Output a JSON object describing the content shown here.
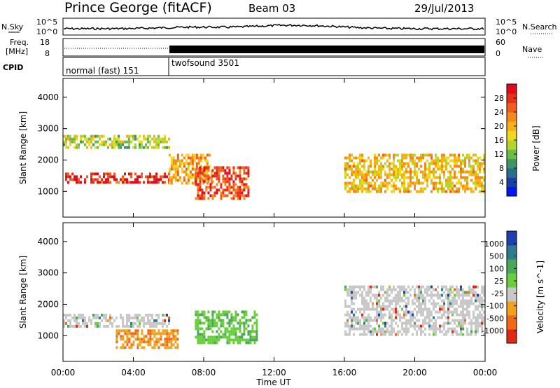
{
  "header": {
    "station": "Prince George (fitACF)",
    "beam": "Beam 03",
    "date": "29/Jul/2013"
  },
  "noise_panel": {
    "left_label": "N.Sky",
    "right_label": "N.Search",
    "tick_top": "10^5",
    "tick_bottom": "10^0"
  },
  "freq_panel": {
    "label_line1": "Freq.",
    "label_line2": "[MHz]",
    "ticks_left": [
      "18",
      "8"
    ],
    "ticks_right": [
      "60",
      "0"
    ],
    "right_label": "Nave"
  },
  "cpid_panel": {
    "label": "CPID",
    "modes": [
      {
        "name": "normal (fast) 151",
        "start_hour": 0
      },
      {
        "name": "twofsound 3501",
        "start_hour": 6
      }
    ]
  },
  "time_axis": {
    "label": "Time UT",
    "ticks": [
      "00:00",
      "04:00",
      "08:00",
      "12:00",
      "16:00",
      "20:00",
      "00:00"
    ]
  },
  "range_axis": {
    "label": "Slant Range [km]",
    "ticks": [
      "1000",
      "2000",
      "3000",
      "4000"
    ]
  },
  "power_scale": {
    "label": "Power [dB]",
    "ticks": [
      "4",
      "8",
      "12",
      "16",
      "20",
      "24",
      "28"
    ],
    "colors": [
      "#0018f0",
      "#1a3fa6",
      "#2a6e8c",
      "#3d9464",
      "#6bbd46",
      "#b6d52b",
      "#f0d81d",
      "#f5b01a",
      "#f48a1c",
      "#ef5f1c",
      "#e6301c",
      "#dc0d1c"
    ]
  },
  "velocity_scale": {
    "label": "Velocity [m s^-1]",
    "ticks": [
      "1000",
      "500",
      "100",
      "25",
      "-25",
      "-100",
      "-500",
      "-1000"
    ],
    "colors": [
      "#1f3fb0",
      "#2f7a8e",
      "#4aa75a",
      "#6acd3c",
      "#c8c8c8",
      "#f0a21c",
      "#ef6a18",
      "#e02a14"
    ]
  },
  "chart_data": [
    {
      "type": "heatmap",
      "title": "Power",
      "xlabel": "Time UT",
      "ylabel": "Slant Range [km]",
      "xlim": [
        0,
        24
      ],
      "ylim": [
        180,
        4600
      ],
      "scale": "Power [dB]",
      "regions": [
        {
          "t": [
            0,
            6
          ],
          "r": [
            1300,
            1600
          ],
          "value": 28
        },
        {
          "t": [
            6,
            8.5
          ],
          "r": [
            1300,
            2200
          ],
          "value": 20
        },
        {
          "t": [
            7.5,
            10.5
          ],
          "r": [
            750,
            1800
          ],
          "value": 26
        },
        {
          "t": [
            0,
            6
          ],
          "r": [
            2400,
            2800
          ],
          "value": 14
        },
        {
          "t": [
            16,
            24
          ],
          "r": [
            1000,
            2200
          ],
          "value": 18
        }
      ]
    },
    {
      "type": "heatmap",
      "title": "Velocity",
      "xlabel": "Time UT",
      "ylabel": "Slant Range [km]",
      "xlim": [
        0,
        24
      ],
      "ylim": [
        180,
        4600
      ],
      "scale": "Velocity [m s^-1]",
      "regions": [
        {
          "t": [
            0,
            6
          ],
          "r": [
            1300,
            1700
          ],
          "value": 0
        },
        {
          "t": [
            3,
            6.5
          ],
          "r": [
            600,
            1200
          ],
          "value": -300
        },
        {
          "t": [
            7.5,
            11
          ],
          "r": [
            800,
            1800
          ],
          "value": 150
        },
        {
          "t": [
            16,
            24
          ],
          "r": [
            1000,
            2600
          ],
          "value": 0
        }
      ]
    }
  ]
}
